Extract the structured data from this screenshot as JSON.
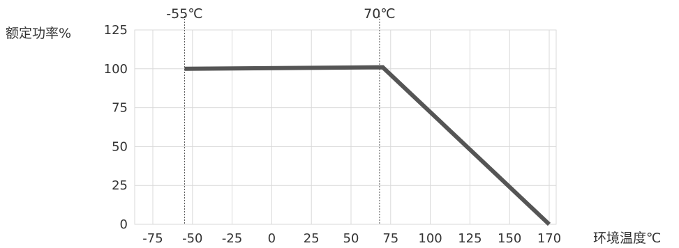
{
  "chart_data": {
    "type": "line",
    "title": "",
    "xlabel": "环境温度℃",
    "ylabel": "额定功率%",
    "x_ticks": [
      "-75",
      "-50",
      "-25",
      "0",
      "25",
      "50",
      "75",
      "100",
      "125",
      "150",
      "170"
    ],
    "y_ticks": [
      "0",
      "25",
      "50",
      "75",
      "100",
      "125"
    ],
    "xlim": [
      -75,
      170
    ],
    "ylim": [
      0,
      125
    ],
    "grid": true,
    "x_ticks_note": "labels as printed",
    "series": [
      {
        "x": [
          -55,
          70,
          170
        ],
        "y": [
          100,
          101,
          0
        ]
      }
    ],
    "annotations": [
      {
        "text": "-55℃",
        "x": -55
      },
      {
        "text": "70℃",
        "x": 68
      }
    ],
    "line_color": "#555555",
    "grid_color": "#d9d9d9",
    "marker_line_color": "#555555"
  }
}
